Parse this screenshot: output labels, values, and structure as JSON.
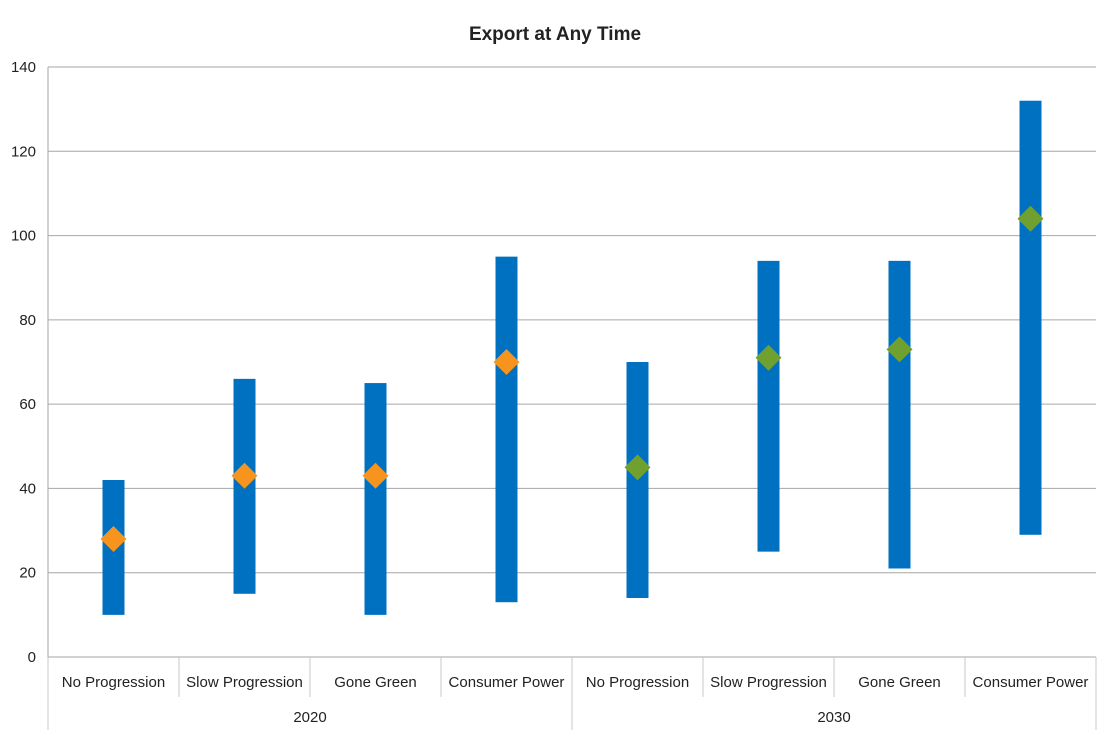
{
  "chart_data": {
    "type": "range-bar",
    "title": "Export at Any Time",
    "xlabel": "",
    "ylabel": "",
    "ylim": [
      0,
      140
    ],
    "yticks": [
      0,
      20,
      40,
      60,
      80,
      100,
      120,
      140
    ],
    "grid": true,
    "legend": "none",
    "categories": [
      "No Progression",
      "Slow Progression",
      "Gone Green",
      "Consumer Power",
      "No Progression",
      "Slow Progression",
      "Gone Green",
      "Consumer Power"
    ],
    "groups": [
      {
        "label": "2020",
        "count": 4,
        "marker_color": "#f7941d"
      },
      {
        "label": "2030",
        "count": 4,
        "marker_color": "#70a030"
      }
    ],
    "range_color": "#0070c0",
    "series": [
      {
        "values": [
          10,
          15,
          10,
          13,
          14,
          25,
          21,
          29
        ]
      },
      {
        "values": [
          42,
          66,
          65,
          95,
          70,
          94,
          94,
          132
        ]
      },
      {
        "values": [
          28,
          43,
          43,
          70,
          45,
          71,
          73,
          104
        ]
      }
    ]
  }
}
